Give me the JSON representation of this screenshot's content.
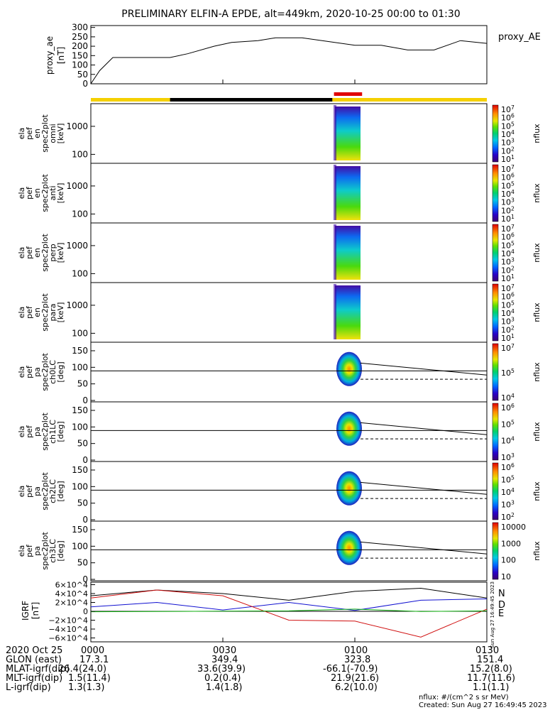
{
  "title": "PRELIMINARY ELFIN-A EPDE, alt=449km, 2020-10-25 00:00 to 01:30",
  "ae_panel": {
    "ylabel": [
      "proxy_ae",
      "[nT]"
    ],
    "legend": "proxy_AE",
    "yticks": [
      "0",
      "50",
      "100",
      "150",
      "200",
      "250",
      "300"
    ],
    "ylim": [
      0,
      310
    ]
  },
  "status_bar": {
    "segments": [
      {
        "from": 0.0,
        "to": 0.2,
        "color": "#f5d000"
      },
      {
        "from": 0.2,
        "to": 0.61,
        "color": "#000000"
      },
      {
        "from": 0.61,
        "to": 1.0,
        "color": "#f5d000"
      }
    ],
    "science_marker": {
      "from": 0.614,
      "to": 0.685,
      "color": "#e00000"
    }
  },
  "spec_panels": [
    {
      "label": [
        "ela",
        "pef",
        "en",
        "spec2plot",
        "omni",
        "[keV]"
      ],
      "yticks": [
        "1000",
        "100"
      ],
      "cb_ticks": [
        "10^7",
        "10^6",
        "10^5",
        "10^4",
        "10^3",
        "10^2",
        "10^1"
      ],
      "cb_label": "nflux"
    },
    {
      "label": [
        "ela",
        "pef",
        "en",
        "spec2plot",
        "anti",
        "[keV]"
      ],
      "yticks": [
        "1000",
        "100"
      ],
      "cb_ticks": [
        "10^7",
        "10^6",
        "10^5",
        "10^4",
        "10^3",
        "10^2",
        "10^1"
      ],
      "cb_label": "nflux"
    },
    {
      "label": [
        "ela",
        "pef",
        "en",
        "spec2plot",
        "perp",
        "[keV]"
      ],
      "yticks": [
        "1000",
        "100"
      ],
      "cb_ticks": [
        "10^7",
        "10^6",
        "10^5",
        "10^4",
        "10^3",
        "10^2",
        "10^1"
      ],
      "cb_label": "nflux"
    },
    {
      "label": [
        "ela",
        "pef",
        "en",
        "spec2plot",
        "para",
        "[keV]"
      ],
      "yticks": [
        "1000",
        "100"
      ],
      "cb_ticks": [
        "10^7",
        "10^6",
        "10^5",
        "10^4",
        "10^3",
        "10^2",
        "10^1"
      ],
      "cb_label": "nflux"
    }
  ],
  "pa_panels": [
    {
      "label": [
        "ela",
        "pef",
        "pa",
        "spec2plot",
        "ch0LC",
        "[deg]"
      ],
      "yticks": [
        "150",
        "100",
        "50",
        "0"
      ],
      "cb_ticks": [
        "10^7",
        "10^5",
        "10^4"
      ],
      "cb_label": "nflux"
    },
    {
      "label": [
        "ela",
        "pef",
        "pa",
        "spec2plot",
        "ch1LC",
        "[deg]"
      ],
      "yticks": [
        "150",
        "100",
        "50",
        "0"
      ],
      "cb_ticks": [
        "10^6",
        "10^5",
        "10^4",
        "10^3"
      ],
      "cb_label": "nflux"
    },
    {
      "label": [
        "ela",
        "pef",
        "pa",
        "spec2plot",
        "ch2LC",
        "[deg]"
      ],
      "yticks": [
        "150",
        "100",
        "50",
        "0"
      ],
      "cb_ticks": [
        "10^6",
        "10^5",
        "10^4",
        "10^3",
        "10^2"
      ],
      "cb_label": "nflux"
    },
    {
      "label": [
        "ela",
        "pef",
        "pa",
        "spec2plot",
        "ch3LC",
        "[deg]"
      ],
      "yticks": [
        "150",
        "100",
        "50",
        "0"
      ],
      "cb_ticks": [
        "10000",
        "1000",
        "100",
        "10"
      ],
      "cb_label": "nflux"
    }
  ],
  "igrf_panel": {
    "ylabel": [
      "IGRF",
      "[nT]"
    ],
    "yticks": [
      "6×10^4",
      "4×10^4",
      "2×10^4",
      "0",
      "−2×10^4",
      "−4×10^4",
      "−6×10^4"
    ],
    "legend": [
      {
        "text": "N",
        "color": "#1010d0"
      },
      {
        "text": "D",
        "color": "#d01010"
      },
      {
        "text": "E",
        "color": "#10b010"
      }
    ],
    "stamp": "Sun Aug 27 16:49:45 2023"
  },
  "chart_data": {
    "type": "line",
    "x_unit": "UT",
    "xlim": [
      "2020-10-25 00:00",
      "2020-10-25 01:30"
    ],
    "proxy_AE": {
      "x": [
        "00:00",
        "00:02",
        "00:05",
        "00:10",
        "00:18",
        "00:22",
        "00:28",
        "00:32",
        "00:38",
        "00:42",
        "00:48",
        "00:54",
        "01:00",
        "01:06",
        "01:12",
        "01:18",
        "01:24",
        "01:30"
      ],
      "y": [
        0,
        70,
        140,
        140,
        140,
        160,
        200,
        220,
        230,
        245,
        245,
        225,
        205,
        205,
        180,
        180,
        230,
        215
      ]
    },
    "igrf_N": {
      "x": [
        "00:00",
        "00:15",
        "00:30",
        "00:45",
        "01:00",
        "01:15",
        "01:30"
      ],
      "y": [
        10000,
        20000,
        3000,
        20000,
        2000,
        25000,
        28000
      ]
    },
    "igrf_D": {
      "x": [
        "00:00",
        "00:15",
        "00:30",
        "00:45",
        "01:00",
        "01:15",
        "01:30"
      ],
      "y": [
        30000,
        48000,
        35000,
        -20000,
        -22000,
        -58000,
        5000
      ]
    },
    "igrf_E": {
      "x": [
        "00:00",
        "00:15",
        "00:30",
        "00:45",
        "01:00",
        "01:15",
        "01:30"
      ],
      "y": [
        -1000,
        -500,
        500,
        1000,
        5000,
        -500,
        1000
      ]
    },
    "igrf_total": {
      "x": [
        "00:00",
        "00:15",
        "00:30",
        "00:45",
        "01:00",
        "01:15",
        "01:30"
      ],
      "y": [
        35000,
        48000,
        40000,
        25000,
        45000,
        52000,
        30000
      ]
    }
  },
  "x_axis": {
    "row_labels": [
      "2020 Oct 25",
      "GLON (east)",
      "MLAT-igrf(dip)",
      "MLT-igrf(dip)",
      "L-igrf(dip)"
    ],
    "columns": [
      {
        "tick": "0000",
        "values": [
          "17.3.1",
          "26.4(24.0)",
          "1.5(11.4)",
          "1.3(1.3)"
        ]
      },
      {
        "tick": "0030",
        "values": [
          "349.4",
          "33.6(39.9)",
          "0.2(0.4)",
          "1.4(1.8)"
        ]
      },
      {
        "tick": "0100",
        "values": [
          "323.8",
          "-66.1(-70.9)",
          "21.9(21.6)",
          "6.2(10.0)"
        ]
      },
      {
        "tick": "0130",
        "values": [
          "151.4",
          "15.2(8.0)",
          "11.7(11.6)",
          "1.1(1.1)"
        ]
      }
    ]
  },
  "footer": {
    "units": "nflux: #/(cm^2 s sr MeV)",
    "created": "Created: Sun Aug 27 16:49:45 2023"
  }
}
